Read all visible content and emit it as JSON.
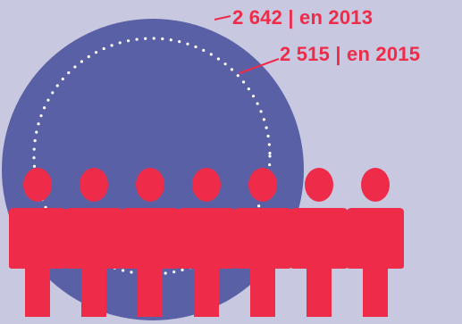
{
  "colors": {
    "background": "#c8c8e0",
    "circle": "#5a60a6",
    "people": "#ee2c4a",
    "label_text": "#ee2c4a",
    "dotted_circle": "#ffffff"
  },
  "labels": {
    "value_2013": "2 642 | en 2013",
    "value_2015": "2 515 | en 2015"
  },
  "people_count": 7
}
